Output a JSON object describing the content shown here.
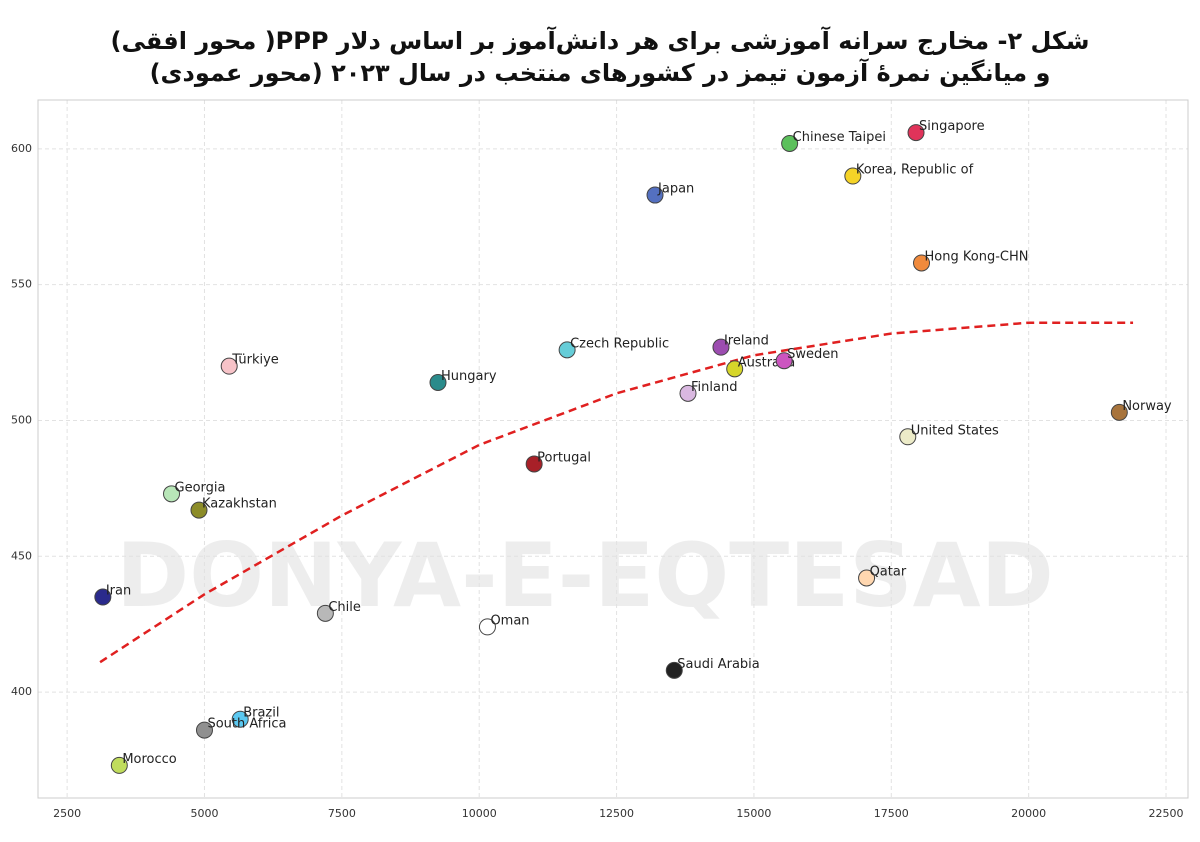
{
  "chart_data": {
    "type": "scatter",
    "title": [
      "شکل ۲- مخارج سرانه آموزشی برای هر دانش‌آموز بر اساس دلار PPP( محور افقی)",
      "و میانگین نمرهٔ آزمون تیمز در کشورهای منتخب در سال ۲۰۲۳ (محور عمودی)"
    ],
    "watermark": "DONYA-E-EQTESAD",
    "xlim": [
      1970,
      22900
    ],
    "ylim": [
      361,
      618
    ],
    "xticks": [
      2500,
      5000,
      7500,
      10000,
      12500,
      15000,
      17500,
      20000,
      22500
    ],
    "yticks": [
      400,
      450,
      500,
      550,
      600
    ],
    "grid": true,
    "points": [
      {
        "label": "Singapore",
        "x": 17950,
        "y": 606,
        "color": "#e0335a"
      },
      {
        "label": "Chinese Taipei",
        "x": 15650,
        "y": 602,
        "color": "#5cc05c"
      },
      {
        "label": "Korea, Republic of",
        "x": 16800,
        "y": 590,
        "color": "#f5d327"
      },
      {
        "label": "Japan",
        "x": 13200,
        "y": 583,
        "color": "#5470c0"
      },
      {
        "label": "Hong Kong-CHN",
        "x": 18050,
        "y": 558,
        "color": "#f08a3c"
      },
      {
        "label": "Türkiye",
        "x": 5450,
        "y": 520,
        "color": "#f7c3c8"
      },
      {
        "label": "Hungary",
        "x": 9250,
        "y": 514,
        "color": "#2a8b8b"
      },
      {
        "label": "Czech Republic",
        "x": 11600,
        "y": 526,
        "color": "#66cdd8"
      },
      {
        "label": "Ireland",
        "x": 14400,
        "y": 527,
        "color": "#9c4db0"
      },
      {
        "label": "Australia",
        "x": 14650,
        "y": 519,
        "color": "#d6d62a"
      },
      {
        "label": "Sweden",
        "x": 15550,
        "y": 522,
        "color": "#cc55c0"
      },
      {
        "label": "Finland",
        "x": 13800,
        "y": 510,
        "color": "#d9b8e0"
      },
      {
        "label": "Norway",
        "x": 21650,
        "y": 503,
        "color": "#a8743c"
      },
      {
        "label": "United States",
        "x": 17800,
        "y": 494,
        "color": "#ecebc8"
      },
      {
        "label": "Portugal",
        "x": 11000,
        "y": 484,
        "color": "#a82028"
      },
      {
        "label": "Georgia",
        "x": 4400,
        "y": 473,
        "color": "#b8e6b8"
      },
      {
        "label": "Kazakhstan",
        "x": 4900,
        "y": 467,
        "color": "#8c8c28"
      },
      {
        "label": "Qatar",
        "x": 17050,
        "y": 442,
        "color": "#ffd7b0"
      },
      {
        "label": "Iran",
        "x": 3150,
        "y": 435,
        "color": "#2a2a8c"
      },
      {
        "label": "Chile",
        "x": 7200,
        "y": 429,
        "color": "#b8b8b8"
      },
      {
        "label": "Oman",
        "x": 10150,
        "y": 424,
        "color": "#ffffff"
      },
      {
        "label": "Saudi Arabia",
        "x": 13550,
        "y": 408,
        "color": "#222222"
      },
      {
        "label": "Brazil",
        "x": 5650,
        "y": 390,
        "color": "#5bc8f0"
      },
      {
        "label": "South Africa",
        "x": 5000,
        "y": 386,
        "color": "#909090"
      },
      {
        "label": "Morocco",
        "x": 3450,
        "y": 373,
        "color": "#c0dc5c"
      }
    ],
    "trend": {
      "color": "#e02020",
      "x": [
        3100,
        5000,
        7500,
        10000,
        12500,
        15000,
        17500,
        20000,
        21900
      ],
      "values": [
        411,
        436,
        465,
        491,
        510,
        524,
        532,
        536,
        536
      ]
    }
  }
}
